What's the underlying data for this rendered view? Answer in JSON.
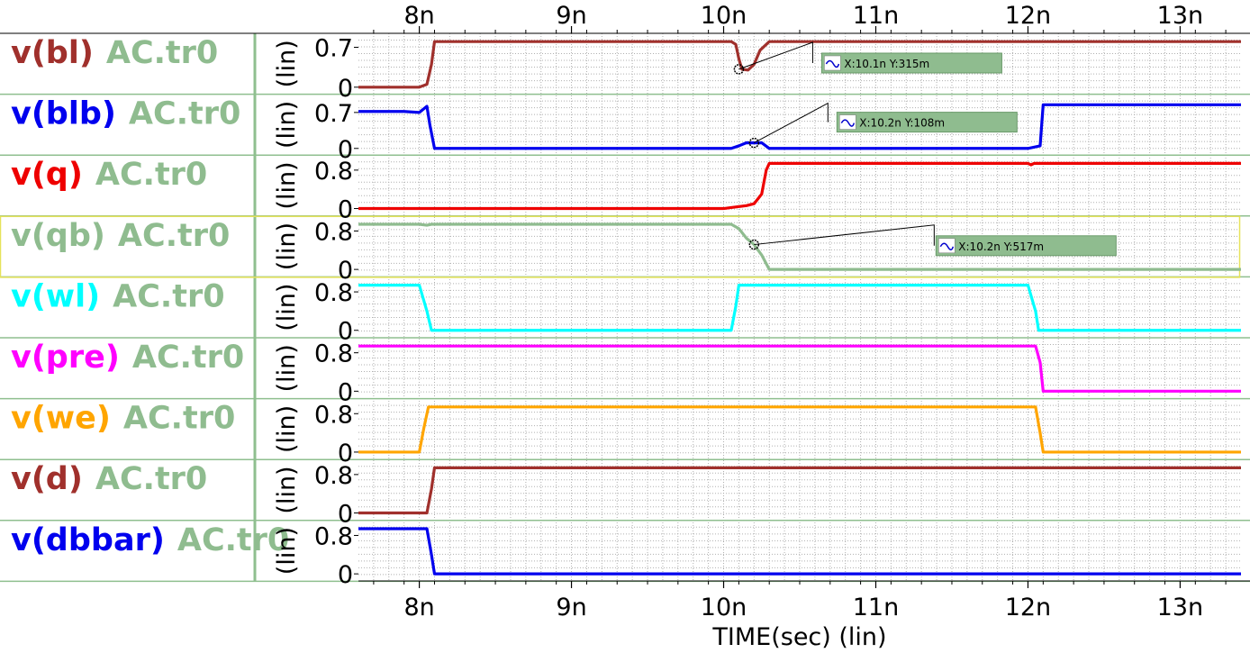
{
  "colors": {
    "background": "#ffffff",
    "panel_border": "#8fbf8f",
    "grid": "#b0b0b0",
    "highlight_border": "#e6e25a",
    "marker_box": "#8fbc8f",
    "marker_box_border": "#6a9a6a",
    "source_label": "#8fbc8f"
  },
  "chart_data": {
    "type": "line",
    "title": "",
    "xlabel": "TIME(sec) (lin)",
    "x_units": "ns",
    "xlim": [
      7.6,
      13.4
    ],
    "xticks": [
      8,
      9,
      10,
      11,
      12,
      13
    ],
    "xtick_labels": [
      "8n",
      "9n",
      "10n",
      "11n",
      "12n",
      "13n"
    ],
    "grid": true,
    "source_label": "AC.tr0",
    "series": [
      {
        "name": "v(bl)",
        "source": "AC.tr0",
        "color": "#a0302c",
        "y_label": "(lin)",
        "ylim": [
          -0.06,
          0.85
        ],
        "yticks": [
          0,
          0.7
        ],
        "ytick_labels": [
          "0",
          "0.7"
        ],
        "x": [
          7.6,
          8.0,
          8.05,
          8.08,
          8.1,
          10.05,
          10.08,
          10.1,
          10.12,
          10.16,
          10.2,
          10.24,
          10.3,
          13.4
        ],
        "y": [
          0.0,
          0.0,
          0.05,
          0.4,
          0.8,
          0.8,
          0.75,
          0.5,
          0.315,
          0.3,
          0.4,
          0.65,
          0.8,
          0.8
        ],
        "markers": [
          {
            "x": 10.1,
            "y": 0.315,
            "label": "X:10.1n Y:315m"
          }
        ]
      },
      {
        "name": "v(blb)",
        "source": "AC.tr0",
        "color": "#0000ee",
        "y_label": "(lin)",
        "ylim": [
          -0.06,
          0.95
        ],
        "yticks": [
          0,
          0.7
        ],
        "ytick_labels": [
          "0",
          "0.7"
        ],
        "x": [
          7.6,
          7.9,
          8.0,
          8.05,
          8.07,
          8.1,
          8.2,
          10.05,
          10.1,
          10.15,
          10.2,
          10.25,
          10.3,
          12.0,
          12.08,
          12.1,
          13.4
        ],
        "y": [
          0.72,
          0.72,
          0.7,
          0.82,
          0.45,
          0.0,
          0.0,
          0.0,
          0.05,
          0.11,
          0.108,
          0.11,
          0.0,
          0.0,
          0.05,
          0.85,
          0.85
        ],
        "markers": [
          {
            "x": 10.2,
            "y": 0.108,
            "label": "X:10.2n Y:108m"
          }
        ]
      },
      {
        "name": "v(q)",
        "source": "AC.tr0",
        "color": "#ee0000",
        "y_label": "(lin)",
        "ylim": [
          -0.08,
          1.0
        ],
        "yticks": [
          0,
          0.8
        ],
        "ytick_labels": [
          "0",
          "0.8"
        ],
        "x": [
          7.6,
          10.0,
          10.05,
          10.15,
          10.2,
          10.25,
          10.28,
          10.3,
          12.0,
          12.02,
          12.04,
          13.4
        ],
        "y": [
          0.0,
          0.0,
          0.02,
          0.06,
          0.1,
          0.3,
          0.8,
          0.94,
          0.94,
          0.91,
          0.94,
          0.94
        ],
        "markers": []
      },
      {
        "name": "v(qb)",
        "source": "AC.tr0",
        "color": "#8fbc8f",
        "y_label": "(lin)",
        "ylim": [
          -0.08,
          1.0
        ],
        "yticks": [
          0,
          0.8
        ],
        "ytick_labels": [
          "0",
          "0.8"
        ],
        "x": [
          7.6,
          8.0,
          8.05,
          8.08,
          10.05,
          10.1,
          10.15,
          10.2,
          10.25,
          10.3,
          13.4
        ],
        "y": [
          0.94,
          0.94,
          0.92,
          0.94,
          0.94,
          0.85,
          0.65,
          0.517,
          0.3,
          0.0,
          0.0
        ],
        "markers": [
          {
            "x": 10.2,
            "y": 0.517,
            "label": "X:10.2n Y:517m"
          }
        ]
      },
      {
        "name": "v(wl)",
        "source": "AC.tr0",
        "color": "#00ffff",
        "y_label": "(lin)",
        "ylim": [
          -0.08,
          1.0
        ],
        "yticks": [
          0,
          0.8
        ],
        "ytick_labels": [
          "0",
          "0.8"
        ],
        "x": [
          7.6,
          8.0,
          8.05,
          8.08,
          10.05,
          10.08,
          10.1,
          12.0,
          12.05,
          12.07,
          13.4
        ],
        "y": [
          0.94,
          0.94,
          0.4,
          0.0,
          0.0,
          0.5,
          0.94,
          0.94,
          0.4,
          0.0,
          0.0
        ],
        "markers": []
      },
      {
        "name": "v(pre)",
        "source": "AC.tr0",
        "color": "#ff00ff",
        "y_label": "(lin)",
        "ylim": [
          -0.08,
          1.0
        ],
        "yticks": [
          0,
          0.8
        ],
        "ytick_labels": [
          "0",
          "0.8"
        ],
        "x": [
          7.6,
          12.05,
          12.08,
          12.1,
          13.4
        ],
        "y": [
          0.94,
          0.94,
          0.6,
          0.0,
          0.0
        ],
        "markers": []
      },
      {
        "name": "v(we)",
        "source": "AC.tr0",
        "color": "#ffa500",
        "y_label": "(lin)",
        "ylim": [
          -0.08,
          1.0
        ],
        "yticks": [
          0,
          0.8
        ],
        "ytick_labels": [
          "0",
          "0.8"
        ],
        "x": [
          7.6,
          8.0,
          8.03,
          8.06,
          12.05,
          12.08,
          12.1,
          13.4
        ],
        "y": [
          0.0,
          0.0,
          0.5,
          0.94,
          0.94,
          0.4,
          0.0,
          0.0
        ],
        "markers": []
      },
      {
        "name": "v(d)",
        "source": "AC.tr0",
        "color": "#a0302c",
        "y_label": "(lin)",
        "ylim": [
          -0.08,
          1.0
        ],
        "yticks": [
          0,
          0.8
        ],
        "ytick_labels": [
          "0",
          "0.8"
        ],
        "x": [
          7.6,
          8.05,
          8.08,
          8.1,
          13.4
        ],
        "y": [
          0.0,
          0.0,
          0.5,
          0.94,
          0.94
        ],
        "markers": []
      },
      {
        "name": "v(dbbar)",
        "source": "AC.tr0",
        "color": "#0000ee",
        "y_label": "(lin)",
        "ylim": [
          -0.08,
          1.0
        ],
        "yticks": [
          0,
          0.8
        ],
        "ytick_labels": [
          "0",
          "0.8"
        ],
        "x": [
          7.6,
          8.05,
          8.08,
          8.1,
          13.4
        ],
        "y": [
          0.94,
          0.94,
          0.4,
          0.0,
          0.0
        ],
        "markers": []
      }
    ]
  }
}
